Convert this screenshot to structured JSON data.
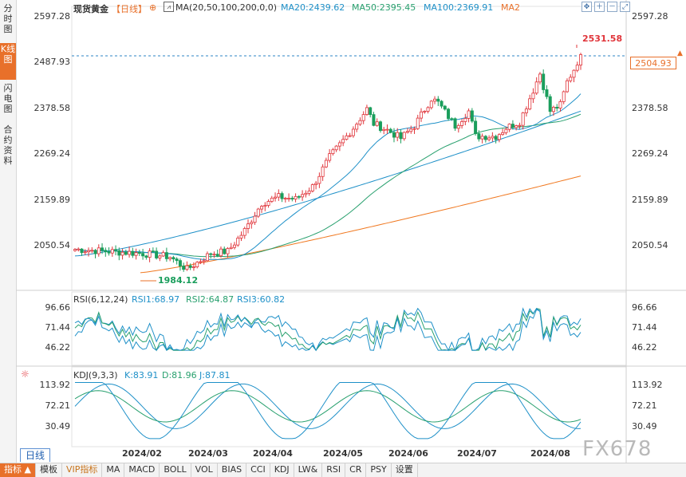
{
  "sidebar": {
    "items": [
      {
        "label": "分时图",
        "active": false
      },
      {
        "label": "K线图",
        "active": true
      },
      {
        "label": "闪电图",
        "active": false
      },
      {
        "label": "合约资料",
        "active": false
      }
    ]
  },
  "header": {
    "title": "现货黄金",
    "period": "【日线】",
    "ma_label": "MA(20,50,100,200,0,0)",
    "ma20": "MA20:2439.62",
    "ma50": "MA50:2395.45",
    "ma100": "MA100:2369.91",
    "ma2": "MA2"
  },
  "price_axis": {
    "ticks": [
      "2597.28",
      "2487.93",
      "2378.58",
      "2269.24",
      "2159.89",
      "2050.54"
    ],
    "current": "2504.93"
  },
  "annotations": {
    "high": "2531.58",
    "low": "1984.12"
  },
  "rsi": {
    "label": "RSI(6,12,24)",
    "rsi1": "RSI1:68.97",
    "rsi2": "RSI2:64.87",
    "rsi3": "RSI3:60.82",
    "ticks": [
      "96.66",
      "71.44",
      "46.22"
    ]
  },
  "kdj": {
    "label": "KDJ(9,3,3)",
    "k": "K:83.91",
    "d": "D:81.96",
    "j": "J:87.81",
    "ticks": [
      "113.92",
      "72.21",
      "30.49"
    ]
  },
  "x_axis": [
    "2024/02",
    "2024/03",
    "2024/04",
    "2024/05",
    "2024/06",
    "2024/07",
    "2024/08"
  ],
  "toolbar": [
    "指标",
    "模板",
    "VIP指标",
    "MA",
    "MACD",
    "BOLL",
    "VOL",
    "BIAS",
    "CCI",
    "KDJ",
    "LW&",
    "RSI",
    "CR",
    "PSY",
    "设置"
  ],
  "period_tab": "日线 ▲",
  "watermark": "FX678",
  "colors": {
    "up": "#e0343a",
    "down": "#1a9e5c",
    "ma20": "#1e90c8",
    "ma50": "#28a06e",
    "ma100": "#1e90c8",
    "ma200": "#f07820",
    "accent": "#e8702a"
  },
  "chart_data": [
    {
      "type": "candlestick",
      "title": "现货黄金",
      "ylim": [
        1984.12,
        2597.28
      ],
      "candles_note": "daily OHLC approximated from picture",
      "anchors": {
        "start": 2040,
        "high": 2531.58,
        "low": 1984.12,
        "last": 2504.93
      },
      "series": [
        {
          "name": "MA20",
          "value": 2439.62
        },
        {
          "name": "MA50",
          "value": 2395.45
        },
        {
          "name": "MA100",
          "value": 2369.91
        }
      ]
    },
    {
      "type": "line",
      "title": "RSI(6,12,24)",
      "series": [
        {
          "name": "RSI1",
          "last": 68.97
        },
        {
          "name": "RSI2",
          "last": 64.87
        },
        {
          "name": "RSI3",
          "last": 60.82
        }
      ],
      "ylim": [
        46.22,
        96.66
      ]
    },
    {
      "type": "line",
      "title": "KDJ(9,3,3)",
      "series": [
        {
          "name": "K",
          "last": 83.91
        },
        {
          "name": "D",
          "last": 81.96
        },
        {
          "name": "J",
          "last": 87.81
        }
      ],
      "ylim": [
        30.49,
        113.92
      ]
    }
  ]
}
